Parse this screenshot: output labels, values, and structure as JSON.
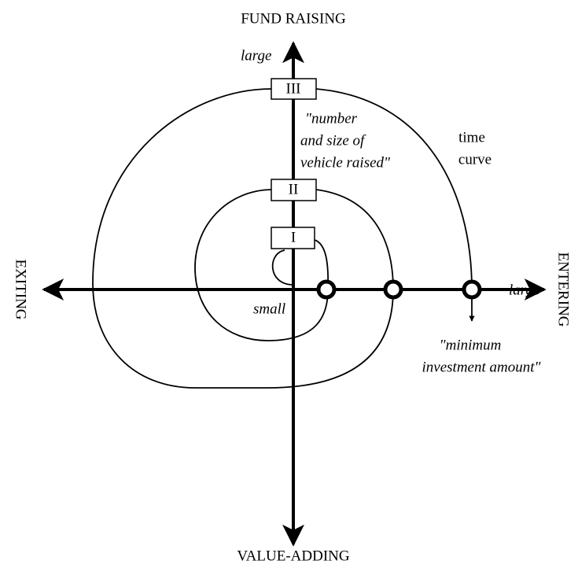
{
  "axes": {
    "top": "FUND RAISING",
    "bottom": "VALUE-ADDING",
    "left": "EXITING",
    "right": "ENTERING"
  },
  "labels": {
    "top_end": "large",
    "origin": "small",
    "right_end": "large"
  },
  "vertical_description": [
    "\"number",
    "and size of",
    "vehicle raised\""
  ],
  "time_curve": [
    "time",
    "curve"
  ],
  "horizontal_description": [
    "\"minimum",
    "investment amount\""
  ],
  "stages": [
    "I",
    "II",
    "III"
  ]
}
